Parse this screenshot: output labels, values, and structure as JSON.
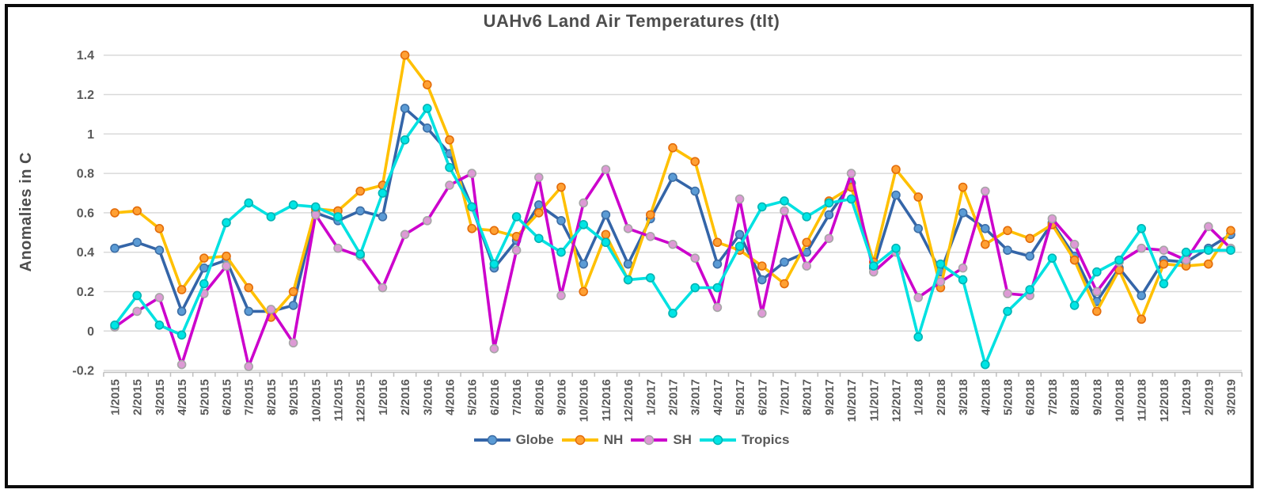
{
  "title": "UAHv6 Land Air Temperatures (tlt)",
  "y_axis_title": "Anomalies in C",
  "colors": {
    "grid": "#D9D9D9",
    "axis": "#BFBFBF",
    "tick_label": "#595959",
    "title": "#4D4D4D",
    "frame_border": "#0B0B0B",
    "background": "#FFFFFF"
  },
  "chart_data": {
    "type": "line",
    "title": "UAHv6 Land Air Temperatures (tlt)",
    "xlabel": "",
    "ylabel": "Anomalies in C",
    "ylim": [
      -0.2,
      1.4
    ],
    "yticks": [
      1.4,
      1.2,
      1,
      0.8,
      0.6,
      0.4,
      0.2,
      0,
      -0.2
    ],
    "grid": true,
    "legend_position": "bottom",
    "marker": "circle",
    "categories": [
      "1/2015",
      "2/2015",
      "3/2015",
      "4/2015",
      "5/2015",
      "6/2015",
      "7/2015",
      "8/2015",
      "9/2015",
      "10/2015",
      "11/2015",
      "12/2015",
      "1/2016",
      "2/2016",
      "3/2016",
      "4/2016",
      "5/2016",
      "6/2016",
      "7/2016",
      "8/2016",
      "9/2016",
      "10/2016",
      "11/2016",
      "12/2016",
      "1/2017",
      "2/2017",
      "3/2017",
      "4/2017",
      "5/2017",
      "6/2017",
      "7/2017",
      "8/2017",
      "9/2017",
      "10/2017",
      "11/2017",
      "12/2017",
      "1/2018",
      "2/2018",
      "3/2018",
      "4/2018",
      "5/2018",
      "6/2018",
      "7/2018",
      "8/2018",
      "9/2018",
      "10/2018",
      "11/2018",
      "12/2018",
      "1/2019",
      "2/2019",
      "3/2019"
    ],
    "series": [
      {
        "name": "Globe",
        "line_color": "#3465A8",
        "marker_fill": "#5B9BD5",
        "marker_stroke": "#3D6EA5",
        "values": [
          0.42,
          0.45,
          0.41,
          0.1,
          0.32,
          0.36,
          0.1,
          0.1,
          0.13,
          0.6,
          0.56,
          0.61,
          0.58,
          1.13,
          1.03,
          0.9,
          0.63,
          0.32,
          0.46,
          0.64,
          0.56,
          0.34,
          0.59,
          0.34,
          0.57,
          0.78,
          0.71,
          0.34,
          0.49,
          0.26,
          0.35,
          0.4,
          0.59,
          0.75,
          0.32,
          0.69,
          0.52,
          0.3,
          0.6,
          0.52,
          0.41,
          0.38,
          0.55,
          0.38,
          0.15,
          0.32,
          0.18,
          0.36,
          0.35,
          0.42,
          0.49
        ]
      },
      {
        "name": "NH",
        "line_color": "#FFC000",
        "marker_fill": "#FFA033",
        "marker_stroke": "#E36C0A",
        "values": [
          0.6,
          0.61,
          0.52,
          0.21,
          0.37,
          0.38,
          0.22,
          0.07,
          0.2,
          0.62,
          0.61,
          0.71,
          0.74,
          1.4,
          1.25,
          0.97,
          0.52,
          0.51,
          0.48,
          0.6,
          0.73,
          0.2,
          0.49,
          0.26,
          0.59,
          0.93,
          0.86,
          0.45,
          0.41,
          0.33,
          0.24,
          0.45,
          0.66,
          0.73,
          0.35,
          0.82,
          0.68,
          0.22,
          0.73,
          0.44,
          0.51,
          0.47,
          0.54,
          0.36,
          0.1,
          0.31,
          0.06,
          0.34,
          0.33,
          0.34,
          0.51
        ]
      },
      {
        "name": "SH",
        "line_color": "#CC00CC",
        "marker_fill": "#DD9AD5",
        "marker_stroke": "#A6A6A6",
        "values": [
          0.02,
          0.1,
          0.17,
          -0.17,
          0.19,
          0.33,
          -0.18,
          0.11,
          -0.06,
          0.59,
          0.42,
          0.38,
          0.22,
          0.49,
          0.56,
          0.74,
          0.8,
          -0.09,
          0.41,
          0.78,
          0.18,
          0.65,
          0.82,
          0.52,
          0.48,
          0.44,
          0.37,
          0.12,
          0.67,
          0.09,
          0.61,
          0.33,
          0.47,
          0.8,
          0.3,
          0.4,
          0.17,
          0.25,
          0.32,
          0.71,
          0.19,
          0.18,
          0.57,
          0.44,
          0.2,
          0.35,
          0.42,
          0.41,
          0.36,
          0.53,
          0.42
        ]
      },
      {
        "name": "Tropics",
        "line_color": "#00E1E1",
        "marker_fill": "#00E5E5",
        "marker_stroke": "#00B3B3",
        "values": [
          0.03,
          0.18,
          0.03,
          -0.02,
          0.24,
          0.55,
          0.65,
          0.58,
          0.64,
          0.63,
          0.58,
          0.39,
          0.7,
          0.97,
          1.13,
          0.83,
          0.63,
          0.34,
          0.58,
          0.47,
          0.4,
          0.54,
          0.45,
          0.26,
          0.27,
          0.09,
          0.22,
          0.22,
          0.43,
          0.63,
          0.66,
          0.58,
          0.65,
          0.67,
          0.33,
          0.42,
          -0.03,
          0.34,
          0.26,
          -0.17,
          0.1,
          0.21,
          0.37,
          0.13,
          0.3,
          0.36,
          0.52,
          0.24,
          0.4,
          0.41,
          0.41
        ]
      }
    ]
  }
}
